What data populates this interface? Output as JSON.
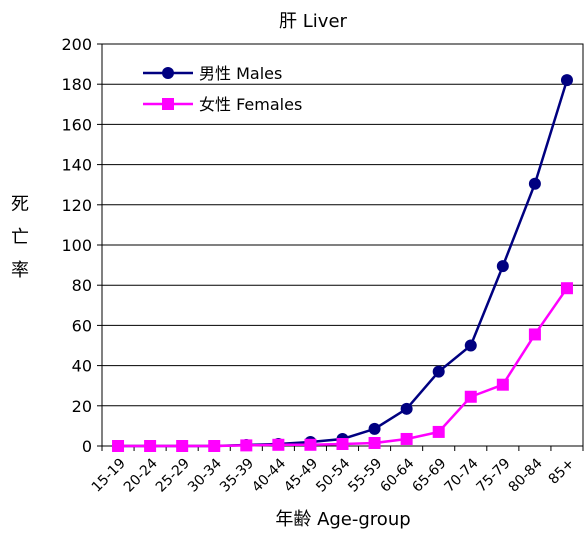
{
  "chart_data": {
    "type": "line",
    "title": "肝 Liver",
    "xlabel": "年齢 Age-group",
    "ylabel": "死亡率",
    "categories": [
      "15-19",
      "20-24",
      "25-29",
      "30-34",
      "35-39",
      "40-44",
      "45-49",
      "50-54",
      "55-59",
      "60-64",
      "65-69",
      "70-74",
      "75-79",
      "80-84",
      "85+"
    ],
    "ylim": [
      0,
      200
    ],
    "yticks": [
      0,
      20,
      40,
      60,
      80,
      100,
      120,
      140,
      160,
      180,
      200
    ],
    "grid": true,
    "legend_position": "top-left",
    "series": [
      {
        "name": "男性 Males",
        "color": "#000080",
        "marker": "circle",
        "values": [
          0,
          0,
          0,
          0,
          0.5,
          1,
          2,
          3.5,
          8.5,
          18.5,
          37,
          50,
          89.5,
          130.5,
          182
        ]
      },
      {
        "name": "女性 Females",
        "color": "#ff00ff",
        "marker": "square",
        "values": [
          0,
          0,
          0,
          0,
          0.3,
          0.6,
          0.6,
          1,
          1.5,
          3.5,
          7,
          24.5,
          30.5,
          55.5,
          78.5
        ]
      }
    ]
  }
}
